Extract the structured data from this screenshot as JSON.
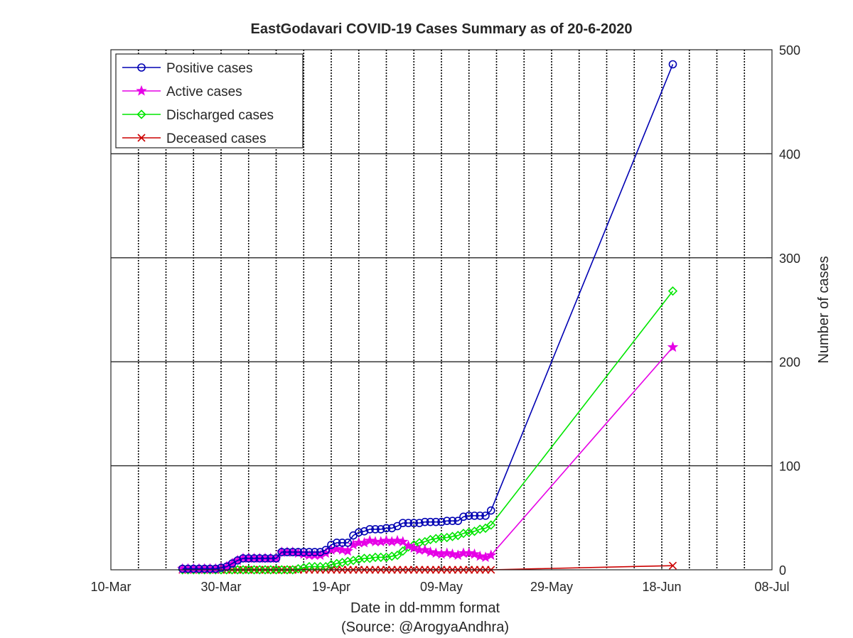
{
  "chart_data": {
    "type": "line",
    "title": "EastGodavari COVID-19 Cases Summary as of 20-6-2020",
    "xlabel": "Date in dd-mmm format",
    "source": "(Source: @ArogyaAndhra)",
    "ylabel": "Number of cases",
    "x_axis": {
      "type": "date",
      "range": [
        "2020-03-10",
        "2020-07-08"
      ],
      "tick_labels": [
        "10-Mar",
        "30-Mar",
        "19-Apr",
        "09-May",
        "29-May",
        "18-Jun",
        "08-Jul"
      ],
      "tick_dates": [
        "2020-03-10",
        "2020-03-30",
        "2020-04-19",
        "2020-05-09",
        "2020-05-29",
        "2020-06-18",
        "2020-07-08"
      ],
      "grid": "dotted, daily major lines every 5 days"
    },
    "y_axis": {
      "position": "right",
      "range": [
        0,
        500
      ],
      "tick_labels": [
        "0",
        "100",
        "200",
        "300",
        "400",
        "500"
      ],
      "tick_values": [
        0,
        100,
        200,
        300,
        400,
        500
      ],
      "grid": true
    },
    "legend": {
      "placement": "top-left"
    },
    "series": [
      {
        "name": "Positive cases",
        "color": "#0000b3",
        "marker": "circle",
        "points": [
          [
            "2020-03-23",
            1
          ],
          [
            "2020-03-24",
            1
          ],
          [
            "2020-03-25",
            1
          ],
          [
            "2020-03-26",
            1
          ],
          [
            "2020-03-27",
            1
          ],
          [
            "2020-03-28",
            1
          ],
          [
            "2020-03-29",
            1
          ],
          [
            "2020-03-30",
            2
          ],
          [
            "2020-03-31",
            3
          ],
          [
            "2020-04-01",
            6
          ],
          [
            "2020-04-02",
            9
          ],
          [
            "2020-04-03",
            11
          ],
          [
            "2020-04-04",
            11
          ],
          [
            "2020-04-05",
            11
          ],
          [
            "2020-04-06",
            11
          ],
          [
            "2020-04-07",
            11
          ],
          [
            "2020-04-08",
            11
          ],
          [
            "2020-04-09",
            11
          ],
          [
            "2020-04-10",
            17
          ],
          [
            "2020-04-11",
            17
          ],
          [
            "2020-04-12",
            17
          ],
          [
            "2020-04-13",
            17
          ],
          [
            "2020-04-14",
            17
          ],
          [
            "2020-04-15",
            17
          ],
          [
            "2020-04-16",
            17
          ],
          [
            "2020-04-17",
            17
          ],
          [
            "2020-04-18",
            19
          ],
          [
            "2020-04-19",
            24
          ],
          [
            "2020-04-20",
            26
          ],
          [
            "2020-04-21",
            26
          ],
          [
            "2020-04-22",
            26
          ],
          [
            "2020-04-23",
            33
          ],
          [
            "2020-04-24",
            36
          ],
          [
            "2020-04-25",
            37
          ],
          [
            "2020-04-26",
            39
          ],
          [
            "2020-04-27",
            39
          ],
          [
            "2020-04-28",
            39
          ],
          [
            "2020-04-29",
            40
          ],
          [
            "2020-04-30",
            40
          ],
          [
            "2020-05-01",
            42
          ],
          [
            "2020-05-02",
            45
          ],
          [
            "2020-05-03",
            45
          ],
          [
            "2020-05-04",
            45
          ],
          [
            "2020-05-05",
            45
          ],
          [
            "2020-05-06",
            46
          ],
          [
            "2020-05-07",
            46
          ],
          [
            "2020-05-08",
            46
          ],
          [
            "2020-05-09",
            46
          ],
          [
            "2020-05-10",
            47
          ],
          [
            "2020-05-11",
            47
          ],
          [
            "2020-05-12",
            47
          ],
          [
            "2020-05-13",
            51
          ],
          [
            "2020-05-14",
            52
          ],
          [
            "2020-05-15",
            52
          ],
          [
            "2020-05-16",
            52
          ],
          [
            "2020-05-17",
            52
          ],
          [
            "2020-05-18",
            57
          ],
          [
            "2020-06-20",
            486
          ]
        ]
      },
      {
        "name": "Active cases",
        "color": "#e600e6",
        "marker": "star",
        "points": [
          [
            "2020-03-23",
            1
          ],
          [
            "2020-03-24",
            1
          ],
          [
            "2020-03-25",
            1
          ],
          [
            "2020-03-26",
            1
          ],
          [
            "2020-03-27",
            1
          ],
          [
            "2020-03-28",
            1
          ],
          [
            "2020-03-29",
            1
          ],
          [
            "2020-03-30",
            2
          ],
          [
            "2020-03-31",
            3
          ],
          [
            "2020-04-01",
            6
          ],
          [
            "2020-04-02",
            9
          ],
          [
            "2020-04-03",
            11
          ],
          [
            "2020-04-04",
            11
          ],
          [
            "2020-04-05",
            11
          ],
          [
            "2020-04-06",
            11
          ],
          [
            "2020-04-07",
            11
          ],
          [
            "2020-04-08",
            11
          ],
          [
            "2020-04-09",
            11
          ],
          [
            "2020-04-10",
            17
          ],
          [
            "2020-04-11",
            17
          ],
          [
            "2020-04-12",
            17
          ],
          [
            "2020-04-13",
            16
          ],
          [
            "2020-04-14",
            15
          ],
          [
            "2020-04-15",
            14
          ],
          [
            "2020-04-16",
            14
          ],
          [
            "2020-04-17",
            14
          ],
          [
            "2020-04-18",
            16
          ],
          [
            "2020-04-19",
            19
          ],
          [
            "2020-04-20",
            20
          ],
          [
            "2020-04-21",
            19
          ],
          [
            "2020-04-22",
            18
          ],
          [
            "2020-04-23",
            24
          ],
          [
            "2020-04-24",
            26
          ],
          [
            "2020-04-25",
            26
          ],
          [
            "2020-04-26",
            28
          ],
          [
            "2020-04-27",
            27
          ],
          [
            "2020-04-28",
            27
          ],
          [
            "2020-04-29",
            28
          ],
          [
            "2020-04-30",
            27
          ],
          [
            "2020-05-01",
            28
          ],
          [
            "2020-05-02",
            27
          ],
          [
            "2020-05-03",
            23
          ],
          [
            "2020-05-04",
            21
          ],
          [
            "2020-05-05",
            19
          ],
          [
            "2020-05-06",
            19
          ],
          [
            "2020-05-07",
            17
          ],
          [
            "2020-05-08",
            16
          ],
          [
            "2020-05-09",
            15
          ],
          [
            "2020-05-10",
            16
          ],
          [
            "2020-05-11",
            15
          ],
          [
            "2020-05-12",
            14
          ],
          [
            "2020-05-13",
            16
          ],
          [
            "2020-05-14",
            16
          ],
          [
            "2020-05-15",
            15
          ],
          [
            "2020-05-16",
            13
          ],
          [
            "2020-05-17",
            12
          ],
          [
            "2020-05-18",
            14
          ],
          [
            "2020-06-20",
            214
          ]
        ]
      },
      {
        "name": "Discharged cases",
        "color": "#00e600",
        "marker": "diamond",
        "points": [
          [
            "2020-03-23",
            0
          ],
          [
            "2020-03-24",
            0
          ],
          [
            "2020-03-25",
            0
          ],
          [
            "2020-03-26",
            0
          ],
          [
            "2020-03-27",
            0
          ],
          [
            "2020-03-28",
            0
          ],
          [
            "2020-03-29",
            0
          ],
          [
            "2020-03-30",
            0
          ],
          [
            "2020-03-31",
            0
          ],
          [
            "2020-04-01",
            0
          ],
          [
            "2020-04-02",
            0
          ],
          [
            "2020-04-03",
            0
          ],
          [
            "2020-04-04",
            0
          ],
          [
            "2020-04-05",
            0
          ],
          [
            "2020-04-06",
            0
          ],
          [
            "2020-04-07",
            0
          ],
          [
            "2020-04-08",
            0
          ],
          [
            "2020-04-09",
            0
          ],
          [
            "2020-04-10",
            0
          ],
          [
            "2020-04-11",
            0
          ],
          [
            "2020-04-12",
            0
          ],
          [
            "2020-04-13",
            1
          ],
          [
            "2020-04-14",
            2
          ],
          [
            "2020-04-15",
            3
          ],
          [
            "2020-04-16",
            3
          ],
          [
            "2020-04-17",
            3
          ],
          [
            "2020-04-18",
            3
          ],
          [
            "2020-04-19",
            5
          ],
          [
            "2020-04-20",
            6
          ],
          [
            "2020-04-21",
            7
          ],
          [
            "2020-04-22",
            8
          ],
          [
            "2020-04-23",
            9
          ],
          [
            "2020-04-24",
            10
          ],
          [
            "2020-04-25",
            11
          ],
          [
            "2020-04-26",
            11
          ],
          [
            "2020-04-27",
            12
          ],
          [
            "2020-04-28",
            12
          ],
          [
            "2020-04-29",
            12
          ],
          [
            "2020-04-30",
            13
          ],
          [
            "2020-05-01",
            14
          ],
          [
            "2020-05-02",
            18
          ],
          [
            "2020-05-03",
            22
          ],
          [
            "2020-05-04",
            24
          ],
          [
            "2020-05-05",
            26
          ],
          [
            "2020-05-06",
            27
          ],
          [
            "2020-05-07",
            29
          ],
          [
            "2020-05-08",
            30
          ],
          [
            "2020-05-09",
            31
          ],
          [
            "2020-05-10",
            31
          ],
          [
            "2020-05-11",
            32
          ],
          [
            "2020-05-12",
            33
          ],
          [
            "2020-05-13",
            35
          ],
          [
            "2020-05-14",
            36
          ],
          [
            "2020-05-15",
            37
          ],
          [
            "2020-05-16",
            39
          ],
          [
            "2020-05-17",
            40
          ],
          [
            "2020-05-18",
            43
          ],
          [
            "2020-06-20",
            268
          ]
        ]
      },
      {
        "name": "Deceased cases",
        "color": "#cc0000",
        "marker": "x",
        "points": [
          [
            "2020-03-23",
            0
          ],
          [
            "2020-03-24",
            0
          ],
          [
            "2020-03-25",
            0
          ],
          [
            "2020-03-26",
            0
          ],
          [
            "2020-03-27",
            0
          ],
          [
            "2020-03-28",
            0
          ],
          [
            "2020-03-29",
            0
          ],
          [
            "2020-03-30",
            0
          ],
          [
            "2020-03-31",
            0
          ],
          [
            "2020-04-01",
            0
          ],
          [
            "2020-04-02",
            0
          ],
          [
            "2020-04-03",
            0
          ],
          [
            "2020-04-04",
            0
          ],
          [
            "2020-04-05",
            0
          ],
          [
            "2020-04-06",
            0
          ],
          [
            "2020-04-07",
            0
          ],
          [
            "2020-04-08",
            0
          ],
          [
            "2020-04-09",
            0
          ],
          [
            "2020-04-10",
            0
          ],
          [
            "2020-04-11",
            0
          ],
          [
            "2020-04-12",
            0
          ],
          [
            "2020-04-13",
            0
          ],
          [
            "2020-04-14",
            0
          ],
          [
            "2020-04-15",
            0
          ],
          [
            "2020-04-16",
            0
          ],
          [
            "2020-04-17",
            0
          ],
          [
            "2020-04-18",
            0
          ],
          [
            "2020-04-19",
            0
          ],
          [
            "2020-04-20",
            0
          ],
          [
            "2020-04-21",
            0
          ],
          [
            "2020-04-22",
            0
          ],
          [
            "2020-04-23",
            0
          ],
          [
            "2020-04-24",
            0
          ],
          [
            "2020-04-25",
            0
          ],
          [
            "2020-04-26",
            0
          ],
          [
            "2020-04-27",
            0
          ],
          [
            "2020-04-28",
            0
          ],
          [
            "2020-04-29",
            0
          ],
          [
            "2020-04-30",
            0
          ],
          [
            "2020-05-01",
            0
          ],
          [
            "2020-05-02",
            0
          ],
          [
            "2020-05-03",
            0
          ],
          [
            "2020-05-04",
            0
          ],
          [
            "2020-05-05",
            0
          ],
          [
            "2020-05-06",
            0
          ],
          [
            "2020-05-07",
            0
          ],
          [
            "2020-05-08",
            0
          ],
          [
            "2020-05-09",
            0
          ],
          [
            "2020-05-10",
            0
          ],
          [
            "2020-05-11",
            0
          ],
          [
            "2020-05-12",
            0
          ],
          [
            "2020-05-13",
            0
          ],
          [
            "2020-05-14",
            0
          ],
          [
            "2020-05-15",
            0
          ],
          [
            "2020-05-16",
            0
          ],
          [
            "2020-05-17",
            0
          ],
          [
            "2020-05-18",
            0
          ],
          [
            "2020-06-20",
            4
          ]
        ]
      }
    ]
  }
}
